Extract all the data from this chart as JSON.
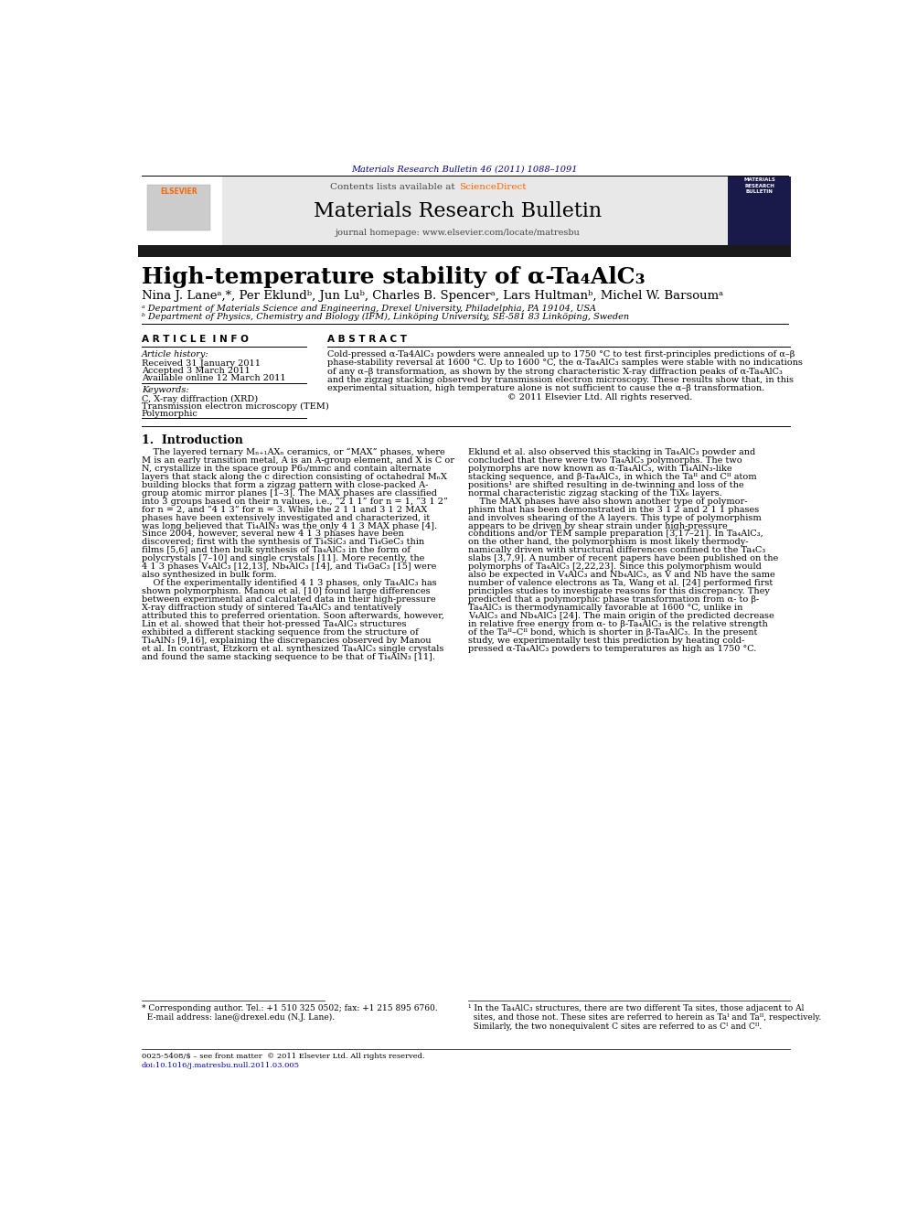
{
  "journal_ref": "Materials Research Bulletin 46 (2011) 1088–1091",
  "journal_ref_color": "#00008B",
  "header_bg": "#E8E8E8",
  "header_text": "Contents lists available at ",
  "sciencedirect_text": "ScienceDirect",
  "sciencedirect_color": "#FF6600",
  "journal_name": "Materials Research Bulletin",
  "journal_homepage": "journal homepage: www.elsevier.com/locate/matresbu",
  "black_bar_color": "#1a1a1a",
  "title": "High-temperature stability of α-Ta₄AlC₃",
  "authors": "Nina J. Laneᵃ,*, Per Eklundᵇ, Jun Luᵇ, Charles B. Spencerᵃ, Lars Hultmanᵇ, Michel W. Barsoumᵃ",
  "affil_a": "ᵃ Department of Materials Science and Engineering, Drexel University, Philadelphia, PA 19104, USA",
  "affil_b": "ᵇ Department of Physics, Chemistry and Biology (IFM), Linköping University, SE-581 83 Linköping, Sweden",
  "article_info_title": "A R T I C L E  I N F O",
  "article_history_label": "Article history:",
  "received": "Received 31 January 2011",
  "accepted": "Accepted 3 March 2011",
  "available": "Available online 12 March 2011",
  "keywords_label": "Keywords:",
  "kw1": "C, X-ray diffraction (XRD)",
  "kw2": "Transmission electron microscopy (TEM)",
  "kw3": "Polymorphic",
  "abstract_title": "A B S T R A C T",
  "bg_color": "#ffffff",
  "text_color": "#000000",
  "blue_link_color": "#0000CC"
}
